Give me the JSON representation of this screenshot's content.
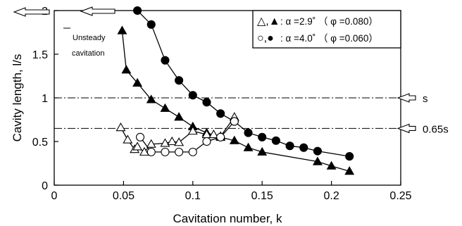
{
  "chart_data": {
    "type": "scatter",
    "xlabel": "Cavitation number, k",
    "ylabel": "Cavity length, l/s",
    "xlim": [
      0,
      0.25
    ],
    "ylim": [
      0,
      2
    ],
    "x_ticks": [
      "0",
      "0.05",
      "0.1",
      "0.15",
      "0.2",
      "0.25"
    ],
    "y_ticks": [
      "0",
      "0.5",
      "1",
      "1.5",
      "2"
    ],
    "grid": false,
    "legend_placement": "top-right",
    "legend": {
      "entry1_symbols": "△,▲",
      "entry1_text": ": α =2.9˚ （ φ =0.080）",
      "entry2_symbols": "○,●",
      "entry2_text": ": α =4.0˚ （ φ =0.060）"
    },
    "reference_lines": [
      {
        "y": 1.0,
        "label": "s"
      },
      {
        "y": 0.65,
        "label": "0.65s"
      }
    ],
    "annotation": {
      "line1": "Unsteady",
      "line2": "cavitation"
    },
    "series": [
      {
        "name": "α =2.9˚ (φ =0.080) steady",
        "marker": "triangle-filled",
        "connected": true,
        "x": [
          0.049,
          0.052,
          0.06,
          0.07,
          0.08,
          0.09,
          0.1,
          0.11,
          0.12,
          0.13,
          0.14,
          0.15,
          0.19,
          0.2,
          0.213
        ],
        "y": [
          1.77,
          1.32,
          1.17,
          0.98,
          0.88,
          0.78,
          0.67,
          0.6,
          0.55,
          0.51,
          0.43,
          0.38,
          0.27,
          0.22,
          0.16
        ]
      },
      {
        "name": "α =2.9˚ (φ =0.080) unsteady",
        "marker": "triangle-open",
        "connected": true,
        "x": [
          0.048,
          0.053,
          0.058,
          0.06,
          0.065,
          0.07,
          0.08,
          0.085,
          0.09,
          0.1,
          0.11,
          0.115,
          0.12,
          0.13
        ],
        "y": [
          0.66,
          0.52,
          0.41,
          0.44,
          0.38,
          0.47,
          0.48,
          0.5,
          0.49,
          0.62,
          0.58,
          0.58,
          0.56,
          0.78
        ]
      },
      {
        "name": "α =4.0˚ (φ =0.060) steady",
        "marker": "circle-filled",
        "connected": true,
        "x": [
          0.06,
          0.07,
          0.08,
          0.09,
          0.1,
          0.11,
          0.12,
          0.13,
          0.14,
          0.15,
          0.16,
          0.17,
          0.18,
          0.19,
          0.213
        ],
        "y": [
          2.0,
          1.84,
          1.43,
          1.2,
          1.03,
          0.95,
          0.82,
          0.73,
          0.6,
          0.55,
          0.51,
          0.45,
          0.43,
          0.39,
          0.33
        ]
      },
      {
        "name": "α =4.0˚ (φ =0.060) unsteady",
        "marker": "circle-open",
        "connected": true,
        "x": [
          0.062,
          0.07,
          0.08,
          0.09,
          0.1,
          0.11,
          0.12,
          0.13
        ],
        "y": [
          0.55,
          0.38,
          0.38,
          0.38,
          0.38,
          0.5,
          0.55,
          0.73
        ]
      }
    ]
  }
}
